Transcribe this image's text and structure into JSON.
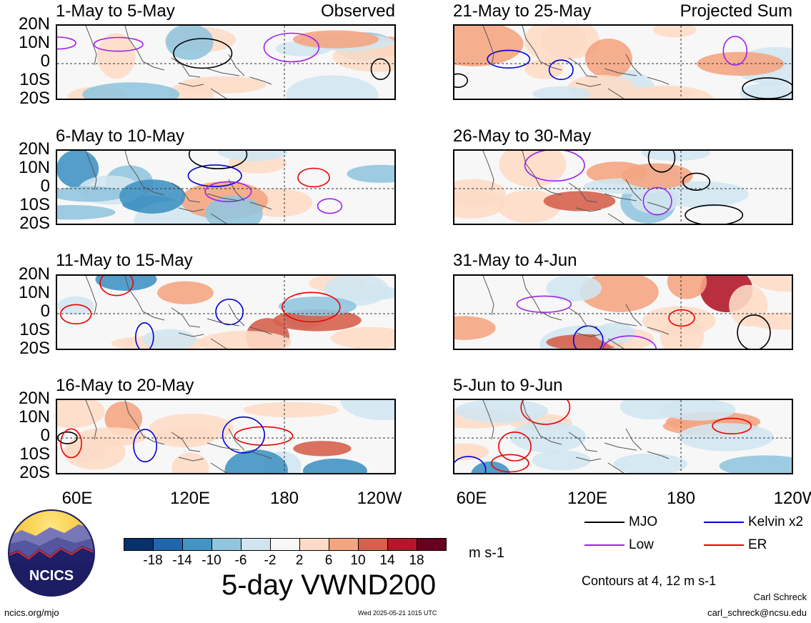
{
  "panels": [
    {
      "title": "1-May to 5-May",
      "label": "Observed",
      "col": 0,
      "row": 0
    },
    {
      "title": "6-May to 10-May",
      "label": "",
      "col": 0,
      "row": 1
    },
    {
      "title": "11-May to 15-May",
      "label": "",
      "col": 0,
      "row": 2
    },
    {
      "title": "16-May to 20-May",
      "label": "",
      "col": 0,
      "row": 3
    },
    {
      "title": "21-May to 25-May",
      "label": "Projected Sum",
      "col": 1,
      "row": 0
    },
    {
      "title": "26-May to 30-May",
      "label": "",
      "col": 1,
      "row": 1
    },
    {
      "title": "31-May to 4-Jun",
      "label": "",
      "col": 1,
      "row": 2
    },
    {
      "title": "5-Jun to 9-Jun",
      "label": "",
      "col": 1,
      "row": 3
    }
  ],
  "y_axis_labels": [
    "20N",
    "10N",
    "0",
    "10S",
    "20S"
  ],
  "x_axis_labels": [
    "60E",
    "120E",
    "180",
    "120W"
  ],
  "colorbar": {
    "ticks": [
      "-18",
      "-14",
      "-10",
      "-6",
      "-2",
      "2",
      "6",
      "10",
      "14",
      "18"
    ],
    "colors": [
      "#08306b",
      "#2166ac",
      "#4393c3",
      "#92c5de",
      "#d1e5f0",
      "#f7f7f7",
      "#fddbc7",
      "#f4a582",
      "#d6604d",
      "#b2182b",
      "#67001f"
    ],
    "units": "m s-1"
  },
  "main_title": "5-day VWND200",
  "legend": [
    {
      "name": "MJO",
      "color": "#000000"
    },
    {
      "name": "Kelvin x2",
      "color": "#0000dd"
    },
    {
      "name": "Low",
      "color": "#a020f0"
    },
    {
      "name": "ER",
      "color": "#ee0000"
    }
  ],
  "contour_note": "Contours at 4, 12 m s-1",
  "logo": {
    "text": "NCICS"
  },
  "footer": {
    "url": "ncics.org/mjo",
    "timestamp": "Wed 2025-05-21 1015 UTC",
    "author": "Carl Schreck",
    "email": "carl_schreck@ncsu.edu"
  }
}
